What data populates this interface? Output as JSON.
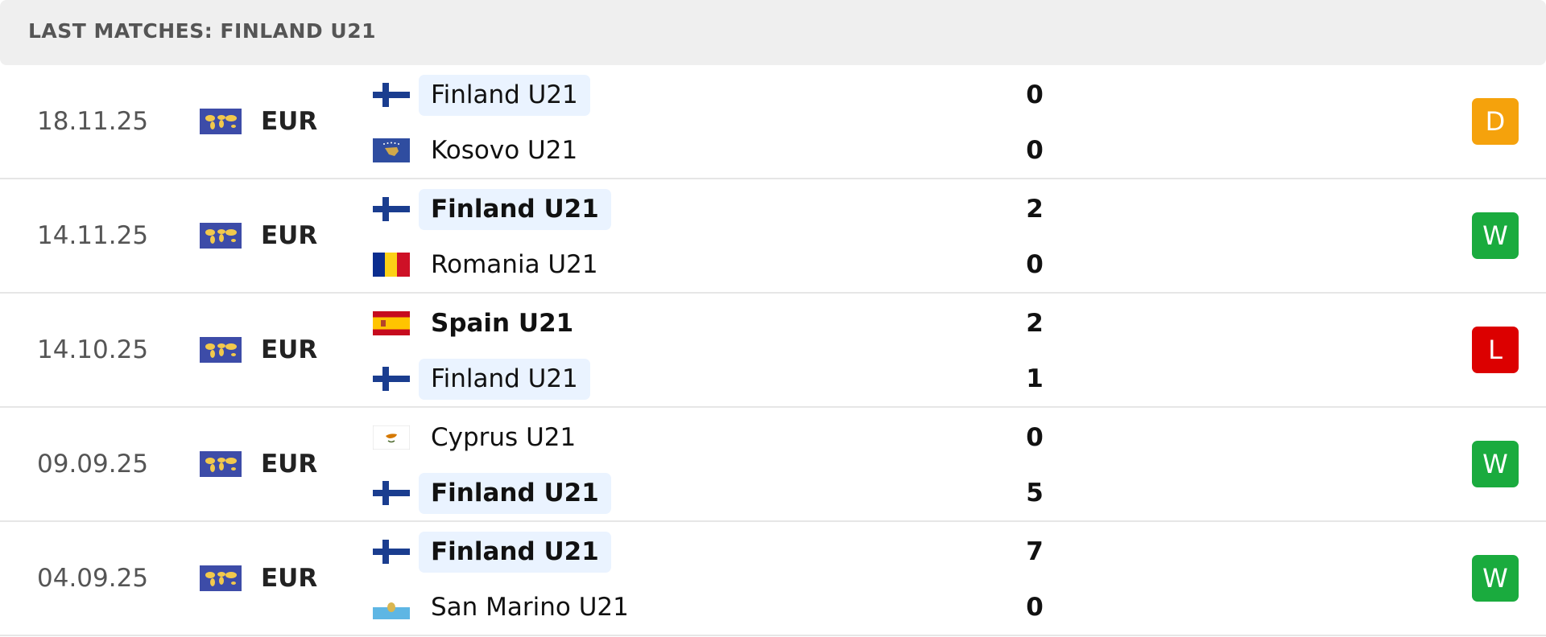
{
  "header": {
    "title": "LAST MATCHES: FINLAND U21"
  },
  "matches": [
    {
      "date": "18.11.25",
      "competition": "EUR",
      "home": {
        "name": "Finland U21",
        "score": 0,
        "highlighted": true
      },
      "away": {
        "name": "Kosovo U21",
        "score": 0,
        "highlighted": false
      },
      "result": "D",
      "result_color": "#f5a20c"
    },
    {
      "date": "14.11.25",
      "competition": "EUR",
      "home": {
        "name": "Finland U21",
        "score": 2,
        "highlighted": true
      },
      "away": {
        "name": "Romania U21",
        "score": 0,
        "highlighted": false
      },
      "result": "W",
      "result_color": "#1aab3e"
    },
    {
      "date": "14.10.25",
      "competition": "EUR",
      "home": {
        "name": "Spain U21",
        "score": 2,
        "highlighted": false
      },
      "away": {
        "name": "Finland U21",
        "score": 1,
        "highlighted": true
      },
      "result": "L",
      "result_color": "#dc0000"
    },
    {
      "date": "09.09.25",
      "competition": "EUR",
      "home": {
        "name": "Cyprus U21",
        "score": 0,
        "highlighted": false
      },
      "away": {
        "name": "Finland U21",
        "score": 5,
        "highlighted": true
      },
      "result": "W",
      "result_color": "#1aab3e"
    },
    {
      "date": "04.09.25",
      "competition": "EUR",
      "home": {
        "name": "Finland U21",
        "score": 7,
        "highlighted": true
      },
      "away": {
        "name": "San Marino U21",
        "score": 0,
        "highlighted": false
      },
      "result": "W",
      "result_color": "#1aab3e"
    }
  ]
}
